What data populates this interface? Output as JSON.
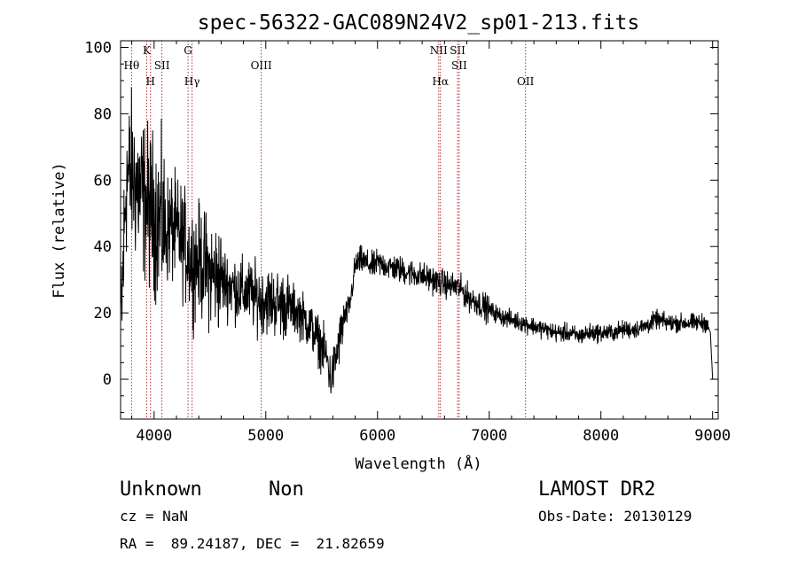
{
  "chart_data": {
    "type": "line",
    "title": "spec-56322-GAC089N24V2_sp01-213.fits",
    "xlabel": "Wavelength (Å)",
    "ylabel": "Flux (relative)",
    "xlim": [
      3700,
      9050
    ],
    "ylim": [
      -12,
      102
    ],
    "xticks": [
      4000,
      5000,
      6000,
      7000,
      8000,
      9000
    ],
    "yticks": [
      0,
      20,
      40,
      60,
      80,
      100
    ],
    "grid": false,
    "line_color": "#000000",
    "marker_color": "#b03030",
    "series": [
      {
        "x": [
          3700,
          3750,
          3800,
          3850,
          3900,
          3950,
          4000,
          4050,
          4100,
          4150,
          4200,
          4250,
          4300,
          4350,
          4400,
          4450,
          4500,
          4550,
          4600,
          4650,
          4700,
          4750,
          4800,
          4850,
          4900,
          4950,
          5000,
          5100,
          5200,
          5300,
          5400,
          5450,
          5500,
          5550,
          5580,
          5600,
          5650,
          5700,
          5750,
          5800,
          5850,
          5900,
          5950,
          6000,
          6100,
          6200,
          6300,
          6400,
          6500,
          6550,
          6600,
          6650,
          6700,
          6750,
          6800,
          6850,
          6900,
          6950,
          7000,
          7100,
          7200,
          7300,
          7400,
          7500,
          7600,
          7700,
          7800,
          7900,
          8000,
          8100,
          8200,
          8300,
          8400,
          8450,
          8500,
          8600,
          8700,
          8800,
          8900,
          8950,
          8980,
          9000
        ],
        "y": [
          12,
          60,
          62,
          58,
          55,
          52,
          50,
          48,
          45,
          46,
          44,
          42,
          38,
          35,
          36,
          34,
          32,
          31,
          30,
          29,
          28,
          27,
          26,
          26,
          25,
          24,
          24,
          23,
          22,
          20,
          16,
          13,
          10,
          6,
          0,
          2,
          10,
          18,
          22,
          34,
          36,
          35,
          34,
          35,
          34,
          33,
          32,
          31,
          30,
          29,
          29,
          28,
          28,
          27,
          25,
          24,
          23,
          22,
          21,
          19,
          18,
          17,
          16,
          15,
          14,
          14,
          13,
          14,
          14,
          14,
          15,
          15,
          16,
          17,
          18,
          17,
          17,
          17,
          17,
          17,
          14,
          0
        ]
      }
    ],
    "lines": [
      {
        "name": "Hθ",
        "x": 3798,
        "row": 1
      },
      {
        "name": "K",
        "x": 3934,
        "row": 0
      },
      {
        "name": "H",
        "x": 3968,
        "row": 2
      },
      {
        "name": "SII",
        "x": 4070,
        "row": 1
      },
      {
        "name": "G",
        "x": 4304,
        "row": 0
      },
      {
        "name": "Hγ",
        "x": 4340,
        "row": 2
      },
      {
        "name": "OIII",
        "x": 4959,
        "row": 1
      },
      {
        "name": "NII",
        "x": 6548,
        "row": 0
      },
      {
        "name": "Hα",
        "x": 6563,
        "row": 2
      },
      {
        "name": "SII",
        "x": 6717,
        "row": 0
      },
      {
        "name": "SII",
        "x": 6731,
        "row": 1
      },
      {
        "name": "OII",
        "x": 7325,
        "row": 2
      }
    ]
  },
  "info": {
    "class": "Unknown",
    "subclass": "Non",
    "survey": "LAMOST DR2",
    "cz": "cz = NaN",
    "obs_date": "Obs-Date: 20130129",
    "coords": "RA =  89.24187, DEC =  21.82659"
  }
}
